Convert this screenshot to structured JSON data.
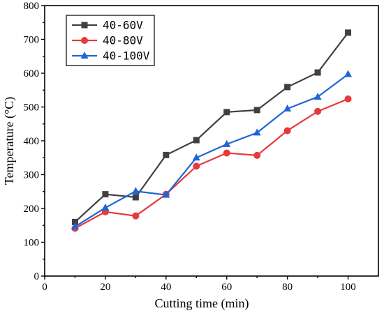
{
  "chart_data": {
    "type": "line",
    "xlabel": "Cutting time (min)",
    "ylabel": "Temperature (°C)",
    "xlim": [
      0,
      110
    ],
    "ylim": [
      0,
      800
    ],
    "xticks": [
      0,
      20,
      40,
      60,
      80,
      100
    ],
    "yticks": [
      0,
      100,
      200,
      300,
      400,
      500,
      600,
      700,
      800
    ],
    "x": [
      10,
      20,
      30,
      40,
      50,
      60,
      70,
      80,
      90,
      100
    ],
    "legend_position": "top-left",
    "grid": false,
    "series": [
      {
        "name": "40-60V",
        "color": "#404040",
        "marker": "square",
        "values": [
          160,
          242,
          233,
          358,
          402,
          485,
          491,
          559,
          602,
          720
        ]
      },
      {
        "name": "40-80V",
        "color": "#e8393a",
        "marker": "circle",
        "values": [
          141,
          190,
          178,
          242,
          325,
          364,
          357,
          430,
          487,
          524
        ]
      },
      {
        "name": "40-100V",
        "color": "#1e66d6",
        "marker": "triangle",
        "values": [
          146,
          202,
          251,
          240,
          350,
          390,
          424,
          495,
          530,
          597
        ]
      }
    ]
  }
}
